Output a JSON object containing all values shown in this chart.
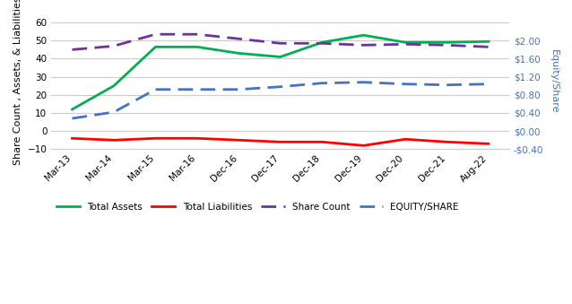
{
  "x_labels": [
    "Mar-13",
    "Mar-14",
    "Mar-15",
    "Mar-16",
    "Dec-16",
    "Dec-17",
    "Dec-18",
    "Dec-19",
    "Dec-20",
    "Dec-21",
    "Aug-22"
  ],
  "total_assets": [
    12,
    25,
    46.5,
    46.5,
    43,
    41,
    49,
    53,
    49,
    49,
    49.5
  ],
  "total_liabilities": [
    -4,
    -5,
    -4,
    -4,
    -5,
    -6,
    -6,
    -8,
    -4.5,
    -6,
    -7
  ],
  "share_count": [
    45,
    47,
    53.5,
    53.5,
    51,
    48.5,
    48.5,
    47.5,
    48,
    47.5,
    46.5
  ],
  "equity_per_share": [
    7,
    10.5,
    23,
    23,
    23,
    24.5,
    26.5,
    27,
    26,
    25.5,
    26
  ],
  "colors": {
    "total_assets": "#00B050",
    "total_liabilities": "#FF0000",
    "share_count": "#7030A0",
    "equity_per_share": "#4472C4"
  },
  "ylim_left": [
    -10,
    65
  ],
  "ylim_right": [
    -10,
    65
  ],
  "yticks_left": [
    -10,
    0,
    10,
    20,
    30,
    40,
    50,
    60
  ],
  "yticks_right_vals": [
    -10,
    0,
    10,
    20,
    30,
    40,
    50,
    60
  ],
  "yticks_right_labels": [
    "-$0.40",
    "$0.00",
    "$0.40",
    "$0.80",
    "$1.20",
    "$1.60",
    "$2.00",
    ""
  ],
  "ylabel_left": "Share Count , Assets, & Liabilities",
  "ylabel_right": "Equity/Share",
  "legend_labels": [
    "Total Assets",
    "Total Liabilities",
    "Share Count",
    "EQUITY/SHARE"
  ],
  "bg_color": "#FFFFFF",
  "grid_color": "#CCCCCC"
}
